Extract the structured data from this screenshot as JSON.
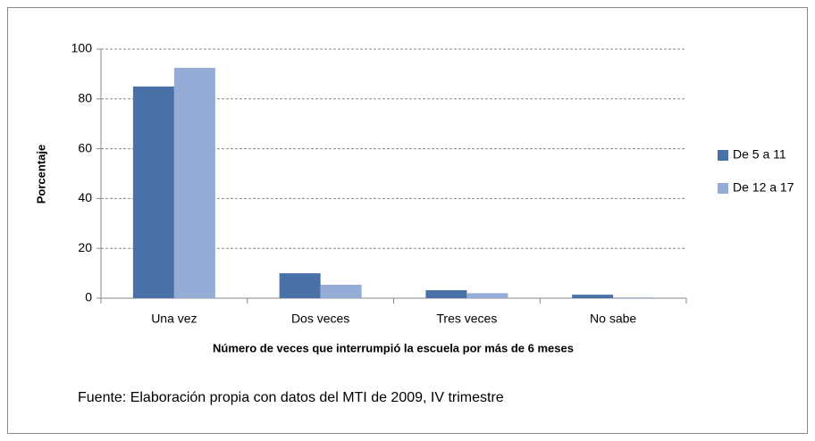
{
  "chart_data": {
    "type": "bar",
    "xlabel": "Número  de veces que interrumpió la escuela por más de 6 meses",
    "ylabel": "Porcentaje",
    "source": "Fuente: Elaboración propia con datos del MTI de 2009,  IV trimestre",
    "categories": [
      "Una vez",
      "Dos veces",
      "Tres veces",
      "No sabe"
    ],
    "series": [
      {
        "name": "De 5 a 11",
        "color": "#4a70a8",
        "values": [
          85,
          10,
          3.2,
          1.4
        ]
      },
      {
        "name": "De 12 a 17",
        "color": "#95acd6",
        "values": [
          92.5,
          5.4,
          2,
          0.3
        ]
      }
    ],
    "ylim": [
      0,
      100
    ],
    "yticks": [
      0,
      20,
      40,
      60,
      80,
      100
    ],
    "grid": true,
    "legend": "right"
  }
}
